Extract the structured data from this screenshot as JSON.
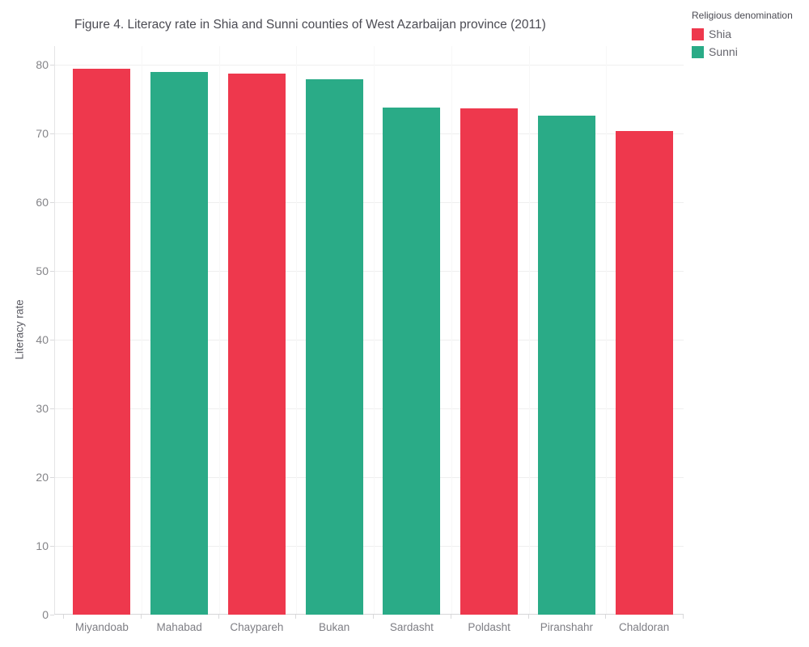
{
  "title": "Figure 4. Literacy rate in Shia and Sunni counties of West Azarbaijan province (2011)",
  "legend": {
    "title": "Religious denomination",
    "items": [
      {
        "label": "Shia",
        "color": "#ee384d"
      },
      {
        "label": "Sunni",
        "color": "#2aab87"
      }
    ]
  },
  "chart_data": {
    "type": "bar",
    "title": "Figure 4. Literacy rate in Shia and Sunni counties of West Azarbaijan province (2011)",
    "categories": [
      "Miyandoab",
      "Mahabad",
      "Chaypareh",
      "Bukan",
      "Sardasht",
      "Poldasht",
      "Piranshahr",
      "Chaldoran"
    ],
    "values": [
      79.4,
      78.9,
      78.7,
      77.9,
      73.8,
      73.6,
      72.6,
      70.3
    ],
    "series_by_category": [
      "Shia",
      "Sunni",
      "Shia",
      "Sunni",
      "Sunni",
      "Shia",
      "Sunni",
      "Shia"
    ],
    "colors": {
      "Shia": "#ee384d",
      "Sunni": "#2aab87"
    },
    "xlabel": "",
    "ylabel": "Literacy rate",
    "ylim": [
      0,
      82.7
    ],
    "yticks": [
      0,
      10,
      20,
      30,
      40,
      50,
      60,
      70,
      80
    ],
    "grid": "horizontal",
    "legend_position": "top-right",
    "legend_title": "Religious denomination"
  }
}
